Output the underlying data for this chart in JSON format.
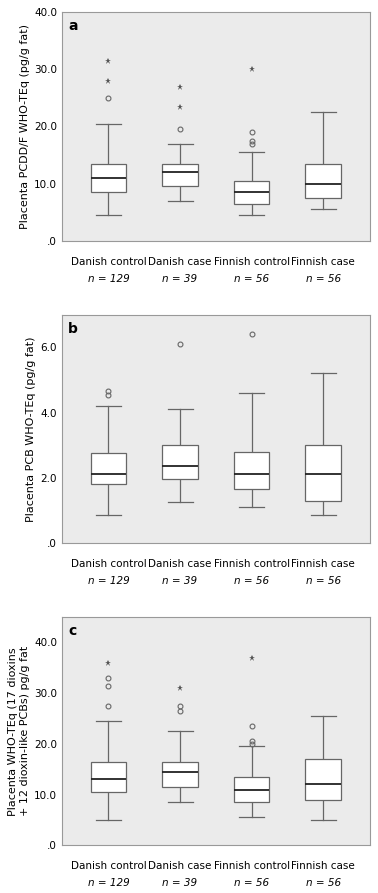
{
  "panels": [
    {
      "label": "a",
      "ylabel": "Placenta PCDD/F WHO-TEq (pg/g fat)",
      "ylim": [
        0,
        40
      ],
      "yticks": [
        0,
        10,
        20,
        30,
        40
      ],
      "yticklabels": [
        ".0",
        "10.0",
        "20.0",
        "30.0",
        "40.0"
      ],
      "groups": [
        {
          "name": "Danish control",
          "n_label": "n = 129",
          "median": 11.0,
          "q1": 8.5,
          "q3": 13.5,
          "whisker_low": 4.5,
          "whisker_high": 20.5,
          "outliers_circle": [
            25.0
          ],
          "outliers_star": [
            28.0,
            31.5
          ]
        },
        {
          "name": "Danish case",
          "n_label": "n = 39",
          "median": 12.0,
          "q1": 9.5,
          "q3": 13.5,
          "whisker_low": 7.0,
          "whisker_high": 17.0,
          "outliers_circle": [
            19.5
          ],
          "outliers_star": [
            23.5,
            27.0
          ]
        },
        {
          "name": "Finnish control",
          "n_label": "n = 56",
          "median": 8.5,
          "q1": 6.5,
          "q3": 10.5,
          "whisker_low": 4.5,
          "whisker_high": 15.5,
          "outliers_circle": [
            17.0,
            17.5,
            19.0
          ],
          "outliers_star": [
            30.0
          ]
        },
        {
          "name": "Finnish case",
          "n_label": "n = 56",
          "median": 10.0,
          "q1": 7.5,
          "q3": 13.5,
          "whisker_low": 5.5,
          "whisker_high": 22.5,
          "outliers_circle": [],
          "outliers_star": []
        }
      ]
    },
    {
      "label": "b",
      "ylabel": "Placenta PCB WHO-TEq (pg/g fat)",
      "ylim": [
        0,
        7
      ],
      "yticks": [
        0,
        2,
        4,
        6
      ],
      "yticklabels": [
        ".0",
        "2.0",
        "4.0",
        "6.0"
      ],
      "groups": [
        {
          "name": "Danish control",
          "n_label": "n = 129",
          "median": 2.1,
          "q1": 1.8,
          "q3": 2.75,
          "whisker_low": 0.85,
          "whisker_high": 4.2,
          "outliers_circle": [
            4.55,
            4.65
          ],
          "outliers_star": []
        },
        {
          "name": "Danish case",
          "n_label": "n = 39",
          "median": 2.35,
          "q1": 1.95,
          "q3": 3.0,
          "whisker_low": 1.25,
          "whisker_high": 4.1,
          "outliers_circle": [
            6.1
          ],
          "outliers_star": []
        },
        {
          "name": "Finnish control",
          "n_label": "n = 56",
          "median": 2.1,
          "q1": 1.65,
          "q3": 2.8,
          "whisker_low": 1.1,
          "whisker_high": 4.6,
          "outliers_circle": [
            6.4
          ],
          "outliers_star": []
        },
        {
          "name": "Finnish case",
          "n_label": "n = 56",
          "median": 2.1,
          "q1": 1.3,
          "q3": 3.0,
          "whisker_low": 0.85,
          "whisker_high": 5.2,
          "outliers_circle": [],
          "outliers_star": []
        }
      ]
    },
    {
      "label": "c",
      "ylabel": "Placenta WHO-TEq (17 dioxins\n+ 12 dioxin-like PCBs) pg/g fat",
      "ylim": [
        0,
        45
      ],
      "yticks": [
        0,
        10,
        20,
        30,
        40
      ],
      "yticklabels": [
        ".0",
        "10.0",
        "20.0",
        "30.0",
        "40.0"
      ],
      "groups": [
        {
          "name": "Danish control",
          "n_label": "n = 129",
          "median": 13.0,
          "q1": 10.5,
          "q3": 16.5,
          "whisker_low": 5.0,
          "whisker_high": 24.5,
          "outliers_circle": [
            27.5,
            31.5,
            33.0
          ],
          "outliers_star": [
            36.0
          ]
        },
        {
          "name": "Danish case",
          "n_label": "n = 39",
          "median": 14.5,
          "q1": 11.5,
          "q3": 16.5,
          "whisker_low": 8.5,
          "whisker_high": 22.5,
          "outliers_circle": [
            26.5,
            27.5
          ],
          "outliers_star": [
            31.0
          ]
        },
        {
          "name": "Finnish control",
          "n_label": "n = 56",
          "median": 11.0,
          "q1": 8.5,
          "q3": 13.5,
          "whisker_low": 5.5,
          "whisker_high": 19.5,
          "outliers_circle": [
            20.0,
            20.5,
            23.5
          ],
          "outliers_star": [
            37.0
          ]
        },
        {
          "name": "Finnish case",
          "n_label": "n = 56",
          "median": 12.0,
          "q1": 9.0,
          "q3": 17.0,
          "whisker_low": 5.0,
          "whisker_high": 25.5,
          "outliers_circle": [],
          "outliers_star": []
        }
      ]
    }
  ],
  "box_facecolor": "white",
  "box_edgecolor": "#666666",
  "whisker_color": "#666666",
  "median_color": "#222222",
  "outlier_circle_color": "#666666",
  "outlier_star_color": "#555555",
  "bg_color": "#ebebeb",
  "fig_bg": "white",
  "box_width": 0.5,
  "label_fontsize": 7.5,
  "tick_fontsize": 7.5,
  "ylabel_fontsize": 8,
  "panel_label_fontsize": 10
}
